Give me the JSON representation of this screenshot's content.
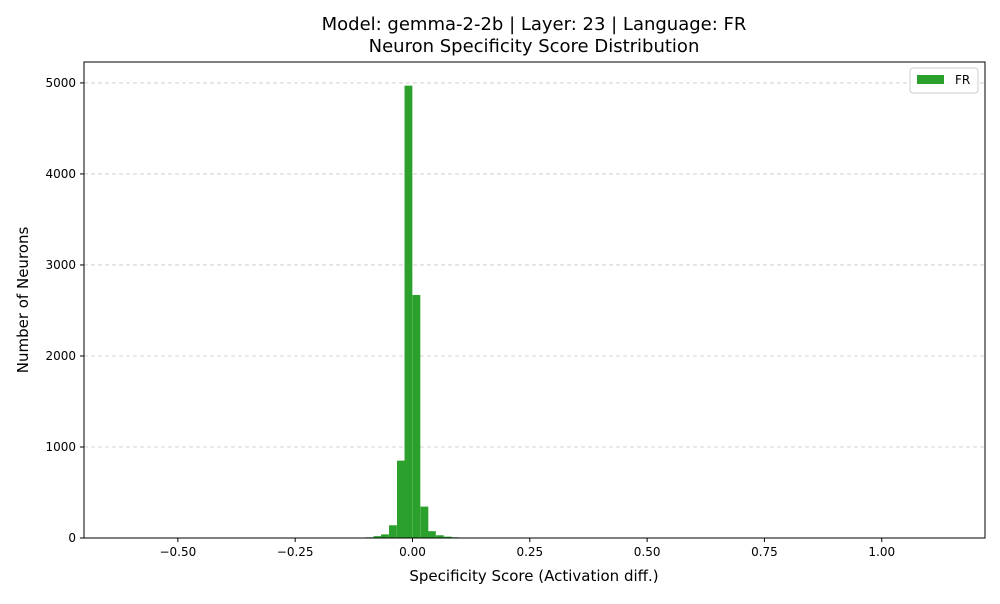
{
  "chart_data": {
    "type": "bar",
    "title": "Model: gemma-2-2b | Layer: 23 | Language: FR",
    "subtitle": "Neuron Specificity Score Distribution",
    "xlabel": "Specificity Score (Activation diff.)",
    "ylabel": "Number of Neurons",
    "xlim": [
      -0.7,
      1.22
    ],
    "ylim": [
      0,
      5230
    ],
    "x_ticks": [
      {
        "value": -0.5,
        "label": "−0.50"
      },
      {
        "value": -0.25,
        "label": "−0.25"
      },
      {
        "value": 0.0,
        "label": "0.00"
      },
      {
        "value": 0.25,
        "label": "0.25"
      },
      {
        "value": 0.5,
        "label": "0.50"
      },
      {
        "value": 0.75,
        "label": "0.75"
      },
      {
        "value": 1.0,
        "label": "1.00"
      }
    ],
    "y_ticks": [
      {
        "value": 0,
        "label": "0"
      },
      {
        "value": 1000,
        "label": "1000"
      },
      {
        "value": 2000,
        "label": "2000"
      },
      {
        "value": 3000,
        "label": "3000"
      },
      {
        "value": 4000,
        "label": "4000"
      },
      {
        "value": 5000,
        "label": "5000"
      }
    ],
    "grid": {
      "y": true,
      "x": false,
      "style": "dashed"
    },
    "legend_position": "top-right",
    "series": [
      {
        "name": "FR",
        "color": "#2ca02c",
        "bin_width": 0.0167,
        "bins": [
          {
            "x0": -0.133,
            "count": 3
          },
          {
            "x0": -0.117,
            "count": 5
          },
          {
            "x0": -0.1,
            "count": 8
          },
          {
            "x0": -0.083,
            "count": 20
          },
          {
            "x0": -0.067,
            "count": 40
          },
          {
            "x0": -0.05,
            "count": 140
          },
          {
            "x0": -0.033,
            "count": 850
          },
          {
            "x0": -0.017,
            "count": 4970
          },
          {
            "x0": 0.0,
            "count": 2670
          },
          {
            "x0": 0.017,
            "count": 345
          },
          {
            "x0": 0.033,
            "count": 75
          },
          {
            "x0": 0.05,
            "count": 30
          },
          {
            "x0": 0.067,
            "count": 15
          },
          {
            "x0": 0.083,
            "count": 8
          },
          {
            "x0": 0.1,
            "count": 5
          },
          {
            "x0": 0.117,
            "count": 3
          },
          {
            "x0": 0.133,
            "count": 2
          },
          {
            "x0": 0.15,
            "count": 3
          }
        ]
      }
    ]
  }
}
